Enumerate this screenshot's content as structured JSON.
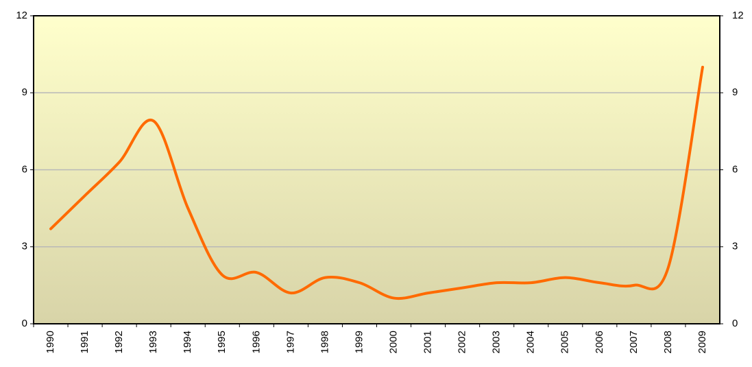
{
  "chart_data": {
    "type": "line",
    "categories": [
      "1990",
      "1991",
      "1992",
      "1993",
      "1994",
      "1995",
      "1996",
      "1997",
      "1998",
      "1999",
      "2000",
      "2001",
      "2002",
      "2003",
      "2004",
      "2005",
      "2006",
      "2007",
      "2008",
      "2009"
    ],
    "series": [
      {
        "color": "#ff6a00",
        "values": [
          3.7,
          5.0,
          6.3,
          7.9,
          4.5,
          1.9,
          2.0,
          1.2,
          1.8,
          1.6,
          1.0,
          1.2,
          1.4,
          1.6,
          1.6,
          1.8,
          1.6,
          1.5,
          2.2,
          10.0
        ]
      }
    ],
    "ylim": [
      0,
      12
    ],
    "yticks": [
      0,
      3,
      6,
      9,
      12
    ],
    "y2lim": [
      0,
      12
    ],
    "y2ticks": [
      0,
      3,
      6,
      9,
      12
    ],
    "grid": true,
    "smooth": true
  }
}
